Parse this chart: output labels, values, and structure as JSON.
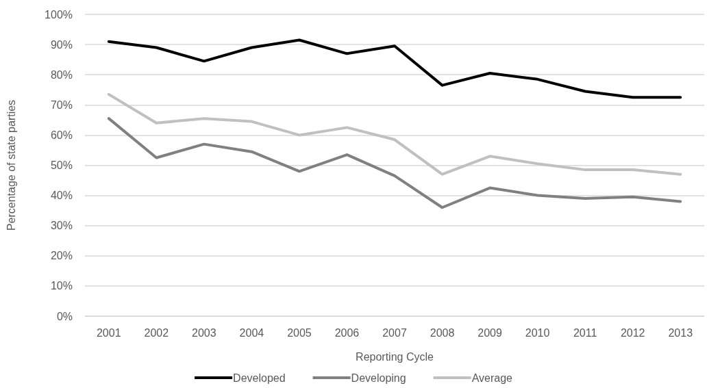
{
  "chart_data": {
    "type": "line",
    "xlabel": "Reporting Cycle",
    "ylabel": "Percentage of state parties",
    "categories": [
      "2001",
      "2002",
      "2003",
      "2004",
      "2005",
      "2006",
      "2007",
      "2008",
      "2009",
      "2010",
      "2011",
      "2012",
      "2013"
    ],
    "series": [
      {
        "name": "Developed",
        "color": "#000000",
        "values": [
          91,
          89,
          84.5,
          89,
          91.5,
          87,
          89.5,
          76.5,
          80.5,
          78.5,
          74.5,
          72.5,
          72.5
        ]
      },
      {
        "name": "Developing",
        "color": "#808080",
        "values": [
          65.5,
          52.5,
          57,
          54.5,
          48,
          53.5,
          46.5,
          36,
          42.5,
          40,
          39,
          39.5,
          38
        ]
      },
      {
        "name": "Average",
        "color": "#c0c0c0",
        "values": [
          73.5,
          64,
          65.5,
          64.5,
          60,
          62.5,
          58.5,
          47,
          53,
          50.5,
          48.5,
          48.5,
          47
        ]
      }
    ],
    "ylim": [
      0,
      100
    ],
    "yticks": [
      {
        "value": 0,
        "label": "0%"
      },
      {
        "value": 10,
        "label": "10%"
      },
      {
        "value": 20,
        "label": "20%"
      },
      {
        "value": 30,
        "label": "30%"
      },
      {
        "value": 40,
        "label": "40%"
      },
      {
        "value": 50,
        "label": "50%"
      },
      {
        "value": 60,
        "label": "60%"
      },
      {
        "value": 70,
        "label": "70%"
      },
      {
        "value": 80,
        "label": "80%"
      },
      {
        "value": 90,
        "label": "90%"
      },
      {
        "value": 100,
        "label": "100%"
      }
    ],
    "grid": "y",
    "legend": "bottom",
    "marker": "none",
    "line_style": "solid"
  }
}
